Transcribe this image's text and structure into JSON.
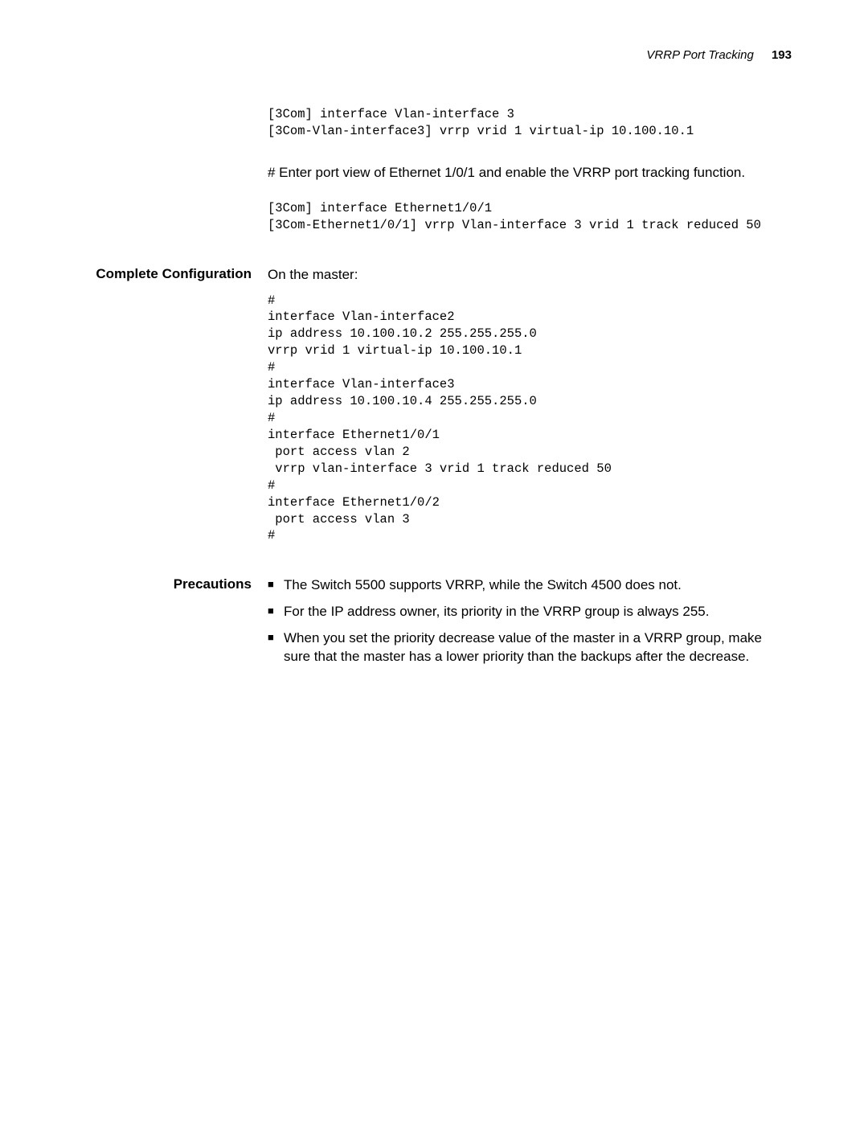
{
  "header": {
    "title": "VRRP Port Tracking",
    "page_number": "193"
  },
  "block1": {
    "code": "[3Com] interface Vlan-interface 3\n[3Com-Vlan-interface3] vrrp vrid 1 virtual-ip 10.100.10.1"
  },
  "block2": {
    "text": "# Enter port view of Ethernet 1/0/1 and enable the VRRP port tracking function."
  },
  "block3": {
    "code": "[3Com] interface Ethernet1/0/1\n[3Com-Ethernet1/0/1] vrrp Vlan-interface 3 vrid 1 track reduced 50"
  },
  "section_complete": {
    "label": "Complete Configuration",
    "intro": "On the master:",
    "code": "#\ninterface Vlan-interface2\nip address 10.100.10.2 255.255.255.0\nvrrp vrid 1 virtual-ip 10.100.10.1\n#\ninterface Vlan-interface3\nip address 10.100.10.4 255.255.255.0\n#\ninterface Ethernet1/0/1\n port access vlan 2\n vrrp vlan-interface 3 vrid 1 track reduced 50\n#\ninterface Ethernet1/0/2\n port access vlan 3\n#"
  },
  "section_precautions": {
    "label": "Precautions",
    "bullets": [
      "The Switch 5500 supports VRRP, while the Switch 4500 does not.",
      "For the IP address owner, its priority in the VRRP group is always 255.",
      "When you set the priority decrease value of the master in a VRRP group, make sure that the master has a lower priority than the backups after the decrease."
    ]
  },
  "bullet_glyph": "■"
}
